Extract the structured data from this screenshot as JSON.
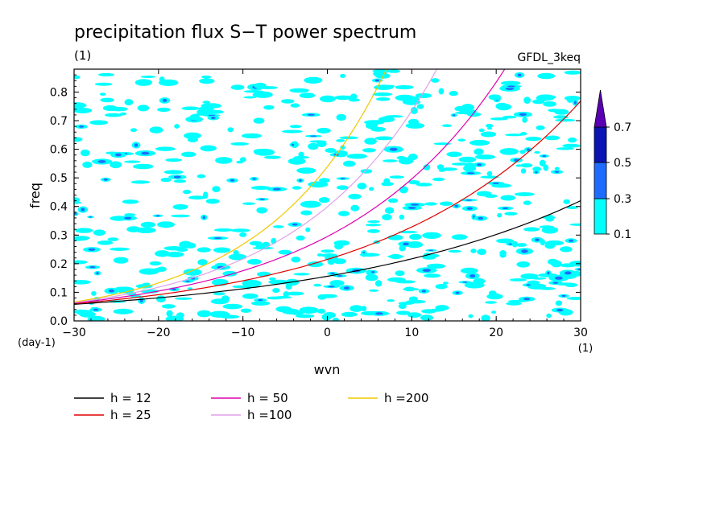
{
  "chart_data": {
    "type": "contour-line",
    "title": "precipitation flux S−T power spectrum",
    "subtitle": "(1)",
    "model_label": "GFDL_3keq",
    "xlabel": "wvn",
    "x_unit": "(1)",
    "ylabel": "freq",
    "y_unit": "(day-1)",
    "xlim": [
      -30,
      30
    ],
    "ylim": [
      0,
      0.88
    ],
    "xticks": [
      -30,
      -20,
      -10,
      0,
      10,
      20,
      30
    ],
    "yticks": [
      0.0,
      0.1,
      0.2,
      0.3,
      0.4,
      0.5,
      0.6,
      0.7,
      0.8
    ],
    "xtick_labels": [
      "−30",
      "−20",
      "−10",
      "0",
      "10",
      "20",
      "30"
    ],
    "ytick_labels": [
      "0.0",
      "0.1",
      "0.2",
      "0.3",
      "0.4",
      "0.5",
      "0.6",
      "0.7",
      "0.8"
    ],
    "colorbar": {
      "levels": [
        "0.1",
        "0.3",
        "0.5",
        "0.7"
      ],
      "colors": [
        "#00ffff",
        "#1e6cff",
        "#0a14b4",
        "#5a00b4"
      ]
    },
    "series": [
      {
        "name": "h = 12",
        "h": 12,
        "color": "#000000"
      },
      {
        "name": "h = 25",
        "h": 25,
        "color": "#e00000"
      },
      {
        "name": "h = 50",
        "h": 50,
        "color": "#e000b0"
      },
      {
        "name": "h =100",
        "h": 100,
        "color": "#e0a0e8"
      },
      {
        "name": "h =200",
        "h": 200,
        "color": "#f0c800"
      }
    ]
  }
}
